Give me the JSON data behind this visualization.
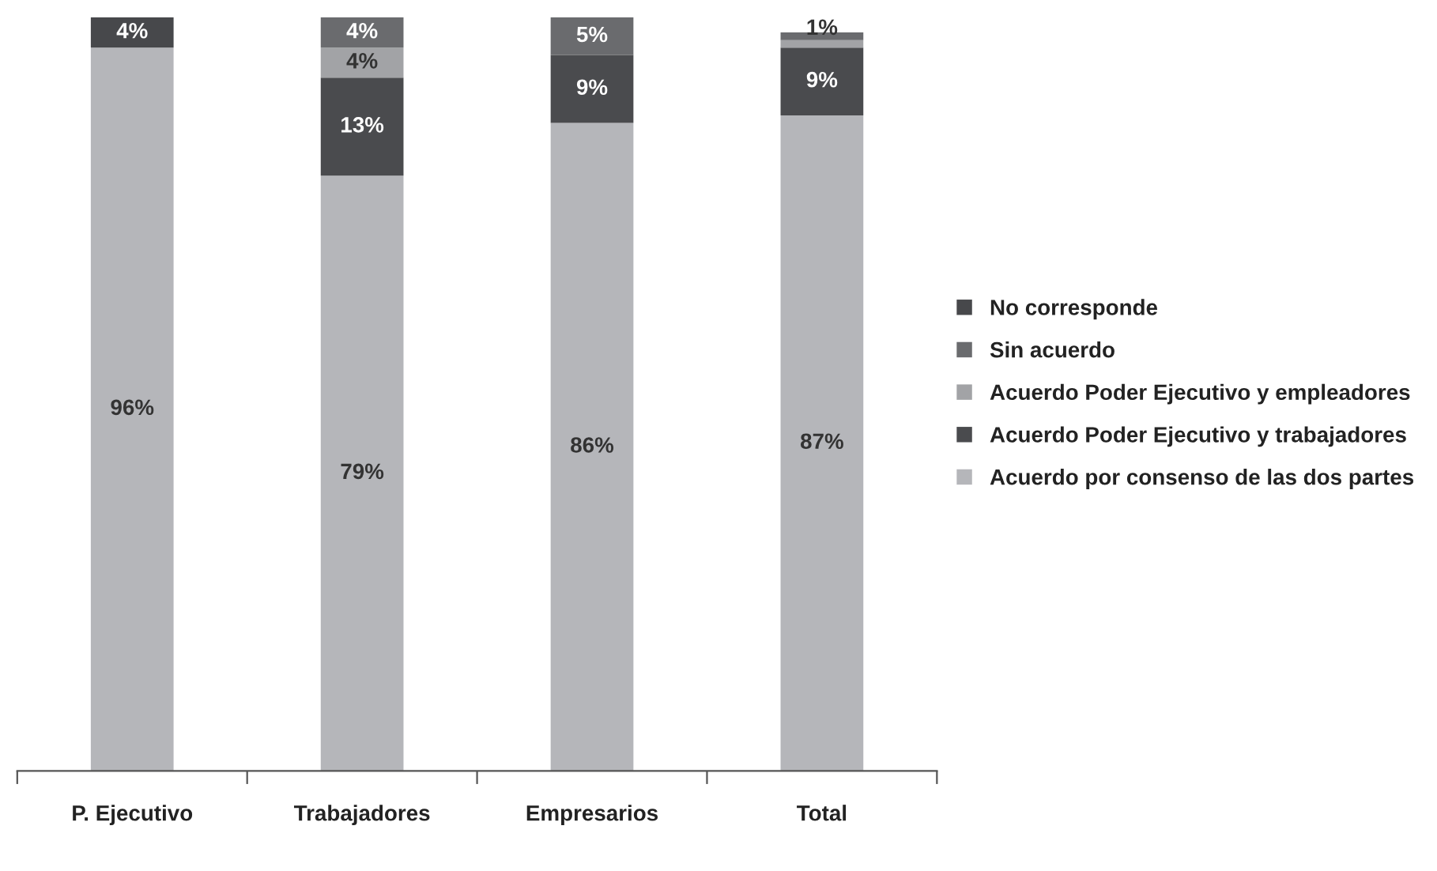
{
  "chart_data": {
    "type": "bar",
    "stacked": true,
    "categories": [
      "P. Ejecutivo",
      "Trabajadores",
      "Empresarios",
      "Total"
    ],
    "series": [
      {
        "name": "Acuerdo por consenso de las dos partes",
        "color": "#b5b6ba",
        "values": [
          96,
          79,
          86,
          87
        ],
        "value_labels": [
          "96%",
          "79%",
          "86%",
          "87%"
        ]
      },
      {
        "name": "Acuerdo Poder Ejecutivo y trabajadores",
        "color": "#4a4b4e",
        "values": [
          null,
          13,
          9,
          9
        ],
        "value_labels": [
          null,
          "13%",
          "9%",
          "9%"
        ]
      },
      {
        "name": "Acuerdo Poder Ejecutivo y empleadores",
        "color": "#a2a3a6",
        "values": [
          null,
          4,
          null,
          1
        ],
        "value_labels": [
          null,
          "4%",
          null,
          "1%"
        ]
      },
      {
        "name": "Sin acuerdo",
        "color": "#6a6b6e",
        "values": [
          null,
          4,
          5,
          1
        ],
        "value_labels": [
          null,
          "4%",
          "5%",
          null
        ]
      },
      {
        "name": "No corresponde",
        "color": "#47484b",
        "values": [
          4,
          null,
          null,
          null
        ],
        "value_labels": [
          "4%",
          null,
          null,
          null
        ]
      }
    ],
    "legend": "right",
    "grid": false
  }
}
